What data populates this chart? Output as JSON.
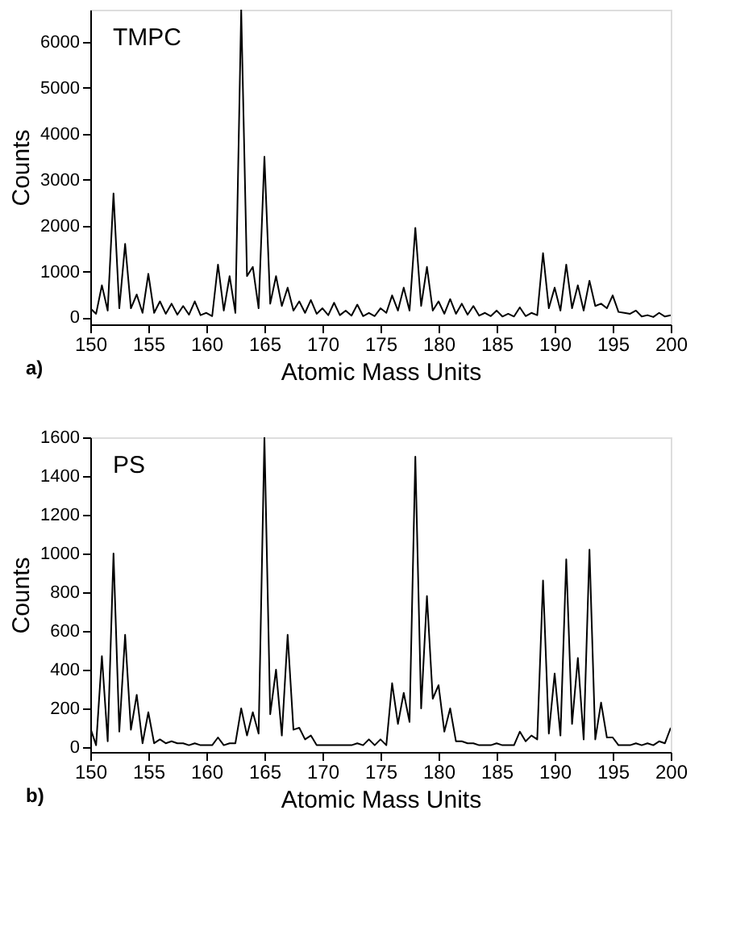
{
  "chart_data": [
    {
      "type": "line",
      "xlabel": "Atomic Mass Units",
      "ylabel": "Counts",
      "annotations": [
        "TMPC",
        "a)"
      ],
      "xlim": [
        150,
        200
      ],
      "xticks": [
        150,
        155,
        160,
        165,
        170,
        175,
        180,
        185,
        190,
        195,
        200
      ],
      "ylim": [
        -150,
        6700
      ],
      "yticks": [
        0,
        1000,
        2000,
        3000,
        4000,
        5000,
        6000
      ],
      "grid": false,
      "marker": "none",
      "line_style": "solid",
      "series": [
        {
          "color": "#000000",
          "x": [
            150,
            150.5,
            151,
            151.5,
            152,
            152.5,
            153,
            153.5,
            154,
            154.5,
            155,
            155.5,
            156,
            156.5,
            157,
            157.5,
            158,
            158.5,
            159,
            159.5,
            160,
            160.5,
            161,
            161.5,
            162,
            162.5,
            163,
            163.5,
            164,
            164.5,
            165,
            165.5,
            166,
            166.5,
            167,
            167.5,
            168,
            168.5,
            169,
            169.5,
            170,
            170.5,
            171,
            171.5,
            172,
            172.5,
            173,
            173.5,
            174,
            174.5,
            175,
            175.5,
            176,
            176.5,
            177,
            177.5,
            178,
            178.5,
            179,
            179.5,
            180,
            180.5,
            181,
            181.5,
            182,
            182.5,
            183,
            183.5,
            184,
            184.5,
            185,
            185.5,
            186,
            186.5,
            187,
            187.5,
            188,
            188.5,
            189,
            189.5,
            190,
            190.5,
            191,
            191.5,
            192,
            192.5,
            193,
            193.5,
            194,
            194.5,
            195,
            195.5,
            196,
            196.5,
            197,
            197.5,
            198,
            198.5,
            199,
            199.5,
            200
          ],
          "values": [
            200,
            80,
            700,
            150,
            2700,
            200,
            1600,
            200,
            500,
            100,
            950,
            100,
            350,
            80,
            300,
            60,
            250,
            60,
            350,
            50,
            100,
            30,
            1150,
            150,
            900,
            100,
            6700,
            900,
            1100,
            200,
            3500,
            300,
            900,
            250,
            650,
            150,
            350,
            100,
            380,
            80,
            200,
            50,
            320,
            50,
            150,
            40,
            280,
            30,
            100,
            30,
            200,
            100,
            480,
            150,
            650,
            150,
            1950,
            250,
            1100,
            150,
            350,
            80,
            400,
            80,
            300,
            60,
            250,
            40,
            100,
            30,
            150,
            20,
            80,
            20,
            220,
            30,
            100,
            50,
            1400,
            200,
            650,
            150,
            1150,
            200,
            700,
            150,
            800,
            250,
            300,
            200,
            480,
            120,
            100,
            80,
            150,
            20,
            50,
            10,
            100,
            20,
            50
          ]
        }
      ]
    },
    {
      "type": "line",
      "xlabel": "Atomic Mass Units",
      "ylabel": "Counts",
      "annotations": [
        "PS",
        "b)"
      ],
      "xlim": [
        150,
        200
      ],
      "xticks": [
        150,
        155,
        160,
        165,
        170,
        175,
        180,
        185,
        190,
        195,
        200
      ],
      "ylim": [
        -25,
        1600
      ],
      "yticks": [
        0,
        200,
        400,
        600,
        800,
        1000,
        1200,
        1400,
        1600
      ],
      "grid": false,
      "marker": "none",
      "line_style": "solid",
      "series": [
        {
          "color": "#000000",
          "x": [
            150,
            150.5,
            151,
            151.5,
            152,
            152.5,
            153,
            153.5,
            154,
            154.5,
            155,
            155.5,
            156,
            156.5,
            157,
            157.5,
            158,
            158.5,
            159,
            159.5,
            160,
            160.5,
            161,
            161.5,
            162,
            162.5,
            163,
            163.5,
            164,
            164.5,
            165,
            165.5,
            166,
            166.5,
            167,
            167.5,
            168,
            168.5,
            169,
            169.5,
            170,
            170.5,
            171,
            171.5,
            172,
            172.5,
            173,
            173.5,
            174,
            174.5,
            175,
            175.5,
            176,
            176.5,
            177,
            177.5,
            178,
            178.5,
            179,
            179.5,
            180,
            180.5,
            181,
            181.5,
            182,
            182.5,
            183,
            183.5,
            184,
            184.5,
            185,
            185.5,
            186,
            186.5,
            187,
            187.5,
            188,
            188.5,
            189,
            189.5,
            190,
            190.5,
            191,
            191.5,
            192,
            192.5,
            193,
            193.5,
            194,
            194.5,
            195,
            195.5,
            196,
            196.5,
            197,
            197.5,
            198,
            198.5,
            199,
            199.5,
            200
          ],
          "values": [
            100,
            10,
            470,
            30,
            1000,
            80,
            580,
            90,
            270,
            20,
            180,
            20,
            40,
            20,
            30,
            20,
            20,
            10,
            20,
            10,
            10,
            10,
            50,
            10,
            20,
            20,
            200,
            60,
            180,
            70,
            1600,
            170,
            400,
            60,
            580,
            90,
            100,
            40,
            60,
            10,
            10,
            10,
            10,
            10,
            10,
            10,
            20,
            10,
            40,
            10,
            40,
            10,
            330,
            120,
            280,
            130,
            1500,
            200,
            780,
            250,
            320,
            80,
            200,
            30,
            30,
            20,
            20,
            10,
            10,
            10,
            20,
            10,
            10,
            10,
            80,
            30,
            60,
            40,
            860,
            70,
            380,
            60,
            970,
            120,
            460,
            40,
            1020,
            40,
            230,
            50,
            50,
            10,
            10,
            10,
            20,
            10,
            20,
            10,
            30,
            20,
            100
          ]
        }
      ]
    }
  ]
}
